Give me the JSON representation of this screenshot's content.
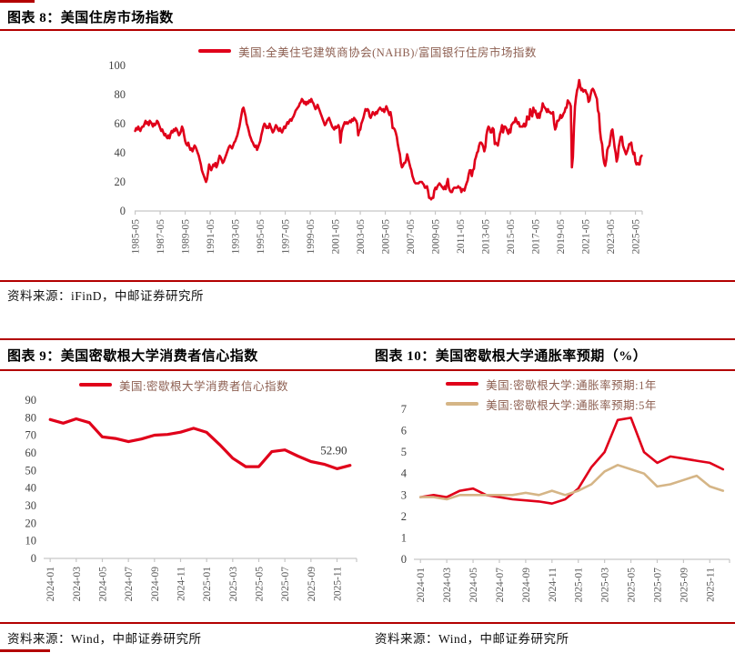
{
  "colors": {
    "accent_rule": "#b30000",
    "series_red": "#e0001a",
    "series_tan": "#d5b586",
    "axis_gray": "#c6c6c6",
    "tick_text": "#595959",
    "legend_text": "#8d5f51"
  },
  "sections": {
    "top": {
      "title": "图表 8：美国住房市场指数",
      "source": "资料来源：iFinD，中邮证券研究所"
    },
    "bottom_left": {
      "title": "图表 9：美国密歇根大学消费者信心指数",
      "source": "资料来源：Wind，中邮证券研究所"
    },
    "bottom_right": {
      "title": "图表 10：美国密歇根大学通胀率预期（%）",
      "source": "资料来源：Wind，中邮证券研究所"
    }
  },
  "chart_data": [
    {
      "id": "housing_market_index",
      "type": "line",
      "title": "美国住房市场指数",
      "x_start": "1985-05",
      "x_end": "2025-11",
      "x_frequency": "monthly",
      "xlabels": [
        "1985-05",
        "1987-05",
        "1989-05",
        "1991-05",
        "1993-05",
        "1995-05",
        "1997-05",
        "1999-05",
        "2001-05",
        "2003-05",
        "2005-05",
        "2007-05",
        "2009-05",
        "2011-05",
        "2013-05",
        "2015-05",
        "2017-05",
        "2019-05",
        "2021-05",
        "2023-05",
        "2025-05"
      ],
      "ylim": [
        0,
        100
      ],
      "yticks": [
        0,
        20,
        40,
        60,
        80,
        100
      ],
      "grid": false,
      "legend_position": "top",
      "series": [
        {
          "name": "美国:全美住宅建筑商协会(NAHB)/富国银行住房市场指数",
          "color": "#e0001a",
          "values": [
            55,
            57,
            56,
            58,
            56,
            55,
            57,
            58,
            58,
            60,
            62,
            60,
            61,
            59,
            62,
            61,
            60,
            58,
            60,
            59,
            60,
            62,
            61,
            59,
            57,
            55,
            56,
            54,
            52,
            53,
            51,
            50,
            52,
            50,
            53,
            55,
            54,
            56,
            55,
            57,
            56,
            54,
            52,
            53,
            55,
            58,
            56,
            52,
            48,
            46,
            45,
            47,
            44,
            42,
            43,
            41,
            43,
            45,
            44,
            42,
            40,
            38,
            35,
            32,
            28,
            26,
            24,
            22,
            20,
            22,
            27,
            32,
            30,
            28,
            30,
            32,
            31,
            33,
            30,
            32,
            35,
            38,
            37,
            35,
            33,
            34,
            36,
            38,
            40,
            42,
            44,
            45,
            44,
            43,
            45,
            47,
            48,
            50,
            52,
            55,
            58,
            62,
            66,
            70,
            71,
            68,
            65,
            60,
            58,
            55,
            52,
            50,
            48,
            47,
            45,
            44,
            45,
            42,
            44,
            46,
            48,
            52,
            55,
            58,
            60,
            59,
            57,
            58,
            57,
            60,
            58,
            56,
            54,
            55,
            57,
            59,
            58,
            56,
            55,
            57,
            55,
            54,
            56,
            58,
            57,
            59,
            61,
            60,
            62,
            63,
            62,
            64,
            65,
            67,
            69,
            70,
            71,
            72,
            74,
            75,
            77,
            76,
            74,
            75,
            73,
            75,
            74,
            76,
            75,
            77,
            75,
            74,
            72,
            70,
            71,
            73,
            71,
            69,
            67,
            65,
            63,
            61,
            59,
            60,
            62,
            63,
            64,
            62,
            60,
            58,
            57,
            56,
            58,
            57,
            58,
            59,
            57,
            47,
            54,
            57,
            59,
            61,
            60,
            61,
            60,
            61,
            62,
            61,
            63,
            62,
            64,
            63,
            62,
            60,
            52,
            55,
            56,
            60,
            62,
            64,
            67,
            70,
            69,
            70,
            69,
            65,
            64,
            66,
            68,
            67,
            66,
            68,
            67,
            69,
            70,
            71,
            70,
            69,
            70,
            68,
            70,
            72,
            70,
            68,
            66,
            68,
            64,
            57,
            57,
            56,
            54,
            51,
            46,
            42,
            39,
            33,
            30,
            31,
            33,
            33,
            35,
            39,
            36,
            33,
            30,
            28,
            24,
            22,
            20,
            19,
            19,
            19,
            19,
            20,
            20,
            20,
            19,
            18,
            16,
            16,
            17,
            14,
            9,
            9,
            8,
            9,
            9,
            14,
            16,
            15,
            17,
            18,
            19,
            18,
            17,
            16,
            15,
            17,
            15,
            19,
            22,
            16,
            14,
            13,
            13,
            15,
            16,
            16,
            16,
            16,
            17,
            16,
            16,
            13,
            15,
            15,
            14,
            17,
            19,
            21,
            25,
            28,
            28,
            24,
            28,
            29,
            35,
            37,
            40,
            41,
            45,
            47,
            47,
            46,
            44,
            41,
            44,
            52,
            56,
            58,
            57,
            54,
            54,
            57,
            56,
            46,
            47,
            46,
            45,
            49,
            53,
            55,
            59,
            54,
            58,
            58,
            57,
            55,
            53,
            56,
            54,
            59,
            60,
            61,
            61,
            64,
            62,
            60,
            61,
            58,
            58,
            58,
            58,
            60,
            58,
            59,
            65,
            63,
            63,
            70,
            67,
            65,
            71,
            68,
            69,
            66,
            64,
            67,
            64,
            68,
            69,
            74,
            72,
            71,
            70,
            68,
            70,
            68,
            68,
            67,
            67,
            68,
            60,
            56,
            58,
            62,
            62,
            63,
            66,
            64,
            65,
            67,
            68,
            71,
            71,
            76,
            75,
            74,
            72,
            30,
            37,
            58,
            72,
            78,
            83,
            85,
            90,
            86,
            83,
            84,
            82,
            83,
            83,
            81,
            80,
            75,
            76,
            80,
            83,
            84,
            83,
            81,
            79,
            77,
            69,
            67,
            55,
            49,
            46,
            38,
            33,
            31,
            35,
            42,
            44,
            45,
            50,
            55,
            56,
            50,
            44,
            40,
            34,
            37,
            44,
            48,
            51,
            51,
            45,
            43,
            41,
            39,
            41,
            43,
            46,
            46,
            47,
            42,
            39,
            40,
            34,
            32,
            33,
            32,
            32,
            37,
            38
          ]
        }
      ]
    },
    {
      "id": "umich_consumer_sentiment",
      "type": "line",
      "title": "美国密歇根大学消费者信心指数",
      "x_start": "2024-01",
      "x_end": "2025-12",
      "x_frequency": "monthly",
      "xlabels": [
        "2024-01",
        "2024-03",
        "2024-05",
        "2024-07",
        "2024-09",
        "2024-11",
        "2025-01",
        "2025-03",
        "2025-05",
        "2025-07",
        "2025-09",
        "2025-11"
      ],
      "ylim": [
        0,
        90
      ],
      "yticks": [
        0,
        10,
        20,
        30,
        40,
        50,
        60,
        70,
        80,
        90
      ],
      "grid": false,
      "legend_position": "top",
      "annotation": {
        "text": "52.90",
        "series": 0,
        "index": 23
      },
      "series": [
        {
          "name": "美国:密歇根大学消费者信心指数",
          "color": "#e0001a",
          "values": [
            79.0,
            76.9,
            79.4,
            77.2,
            69.1,
            68.2,
            66.4,
            67.9,
            70.1,
            70.5,
            71.8,
            74.0,
            71.7,
            64.7,
            57.0,
            52.2,
            52.2,
            60.7,
            61.7,
            58.2,
            55.1,
            53.6,
            51.0,
            52.9
          ]
        }
      ]
    },
    {
      "id": "umich_inflation_expectations",
      "type": "line",
      "title": "美国密歇根大学通胀率预期（%）",
      "x_start": "2024-01",
      "x_end": "2025-12",
      "x_frequency": "monthly",
      "xlabels": [
        "2024-01",
        "2024-03",
        "2024-05",
        "2024-07",
        "2024-09",
        "2024-11",
        "2025-01",
        "2025-03",
        "2025-05",
        "2025-07",
        "2025-09",
        "2025-11"
      ],
      "ylim": [
        0,
        7
      ],
      "yticks": [
        0,
        1,
        2,
        3,
        4,
        5,
        6,
        7
      ],
      "grid": false,
      "legend_position": "top",
      "series": [
        {
          "name": "美国:密歇根大学:通胀率预期:1年",
          "color": "#e0001a",
          "values": [
            2.9,
            3.0,
            2.9,
            3.2,
            3.3,
            3.0,
            2.9,
            2.8,
            2.75,
            2.7,
            2.6,
            2.8,
            3.3,
            4.3,
            5.0,
            6.5,
            6.6,
            5.0,
            4.5,
            4.8,
            4.7,
            4.6,
            4.5,
            4.2
          ]
        },
        {
          "name": "美国:密歇根大学:通胀率预期:5年",
          "color": "#d5b586",
          "values": [
            2.9,
            2.9,
            2.8,
            3.0,
            3.0,
            3.0,
            3.0,
            3.0,
            3.1,
            3.0,
            3.2,
            3.0,
            3.2,
            3.5,
            4.1,
            4.4,
            4.2,
            4.0,
            3.4,
            3.5,
            3.7,
            3.9,
            3.4,
            3.2
          ]
        }
      ]
    }
  ]
}
